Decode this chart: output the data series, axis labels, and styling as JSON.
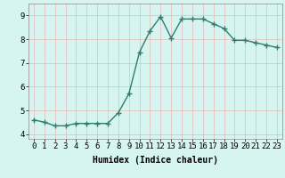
{
  "x": [
    0,
    1,
    2,
    3,
    4,
    5,
    6,
    7,
    8,
    9,
    10,
    11,
    12,
    13,
    14,
    15,
    16,
    17,
    18,
    19,
    20,
    21,
    22,
    23
  ],
  "y": [
    4.6,
    4.5,
    4.35,
    4.35,
    4.45,
    4.45,
    4.45,
    4.45,
    4.9,
    5.7,
    7.45,
    8.35,
    8.95,
    8.05,
    8.85,
    8.85,
    8.85,
    8.65,
    8.45,
    7.95,
    7.95,
    7.85,
    7.75,
    7.65
  ],
  "line_color": "#2e7d6e",
  "marker": "+",
  "marker_size": 4,
  "background_color": "#d6f5f0",
  "grid_color": "#c8e8e0",
  "xlabel": "Humidex (Indice chaleur)",
  "xlim": [
    -0.5,
    23.5
  ],
  "ylim": [
    3.8,
    9.5
  ],
  "yticks": [
    4,
    5,
    6,
    7,
    8,
    9
  ],
  "xticks": [
    0,
    1,
    2,
    3,
    4,
    5,
    6,
    7,
    8,
    9,
    10,
    11,
    12,
    13,
    14,
    15,
    16,
    17,
    18,
    19,
    20,
    21,
    22,
    23
  ],
  "label_fontsize": 7,
  "tick_fontsize": 6.5,
  "linewidth": 1.0
}
